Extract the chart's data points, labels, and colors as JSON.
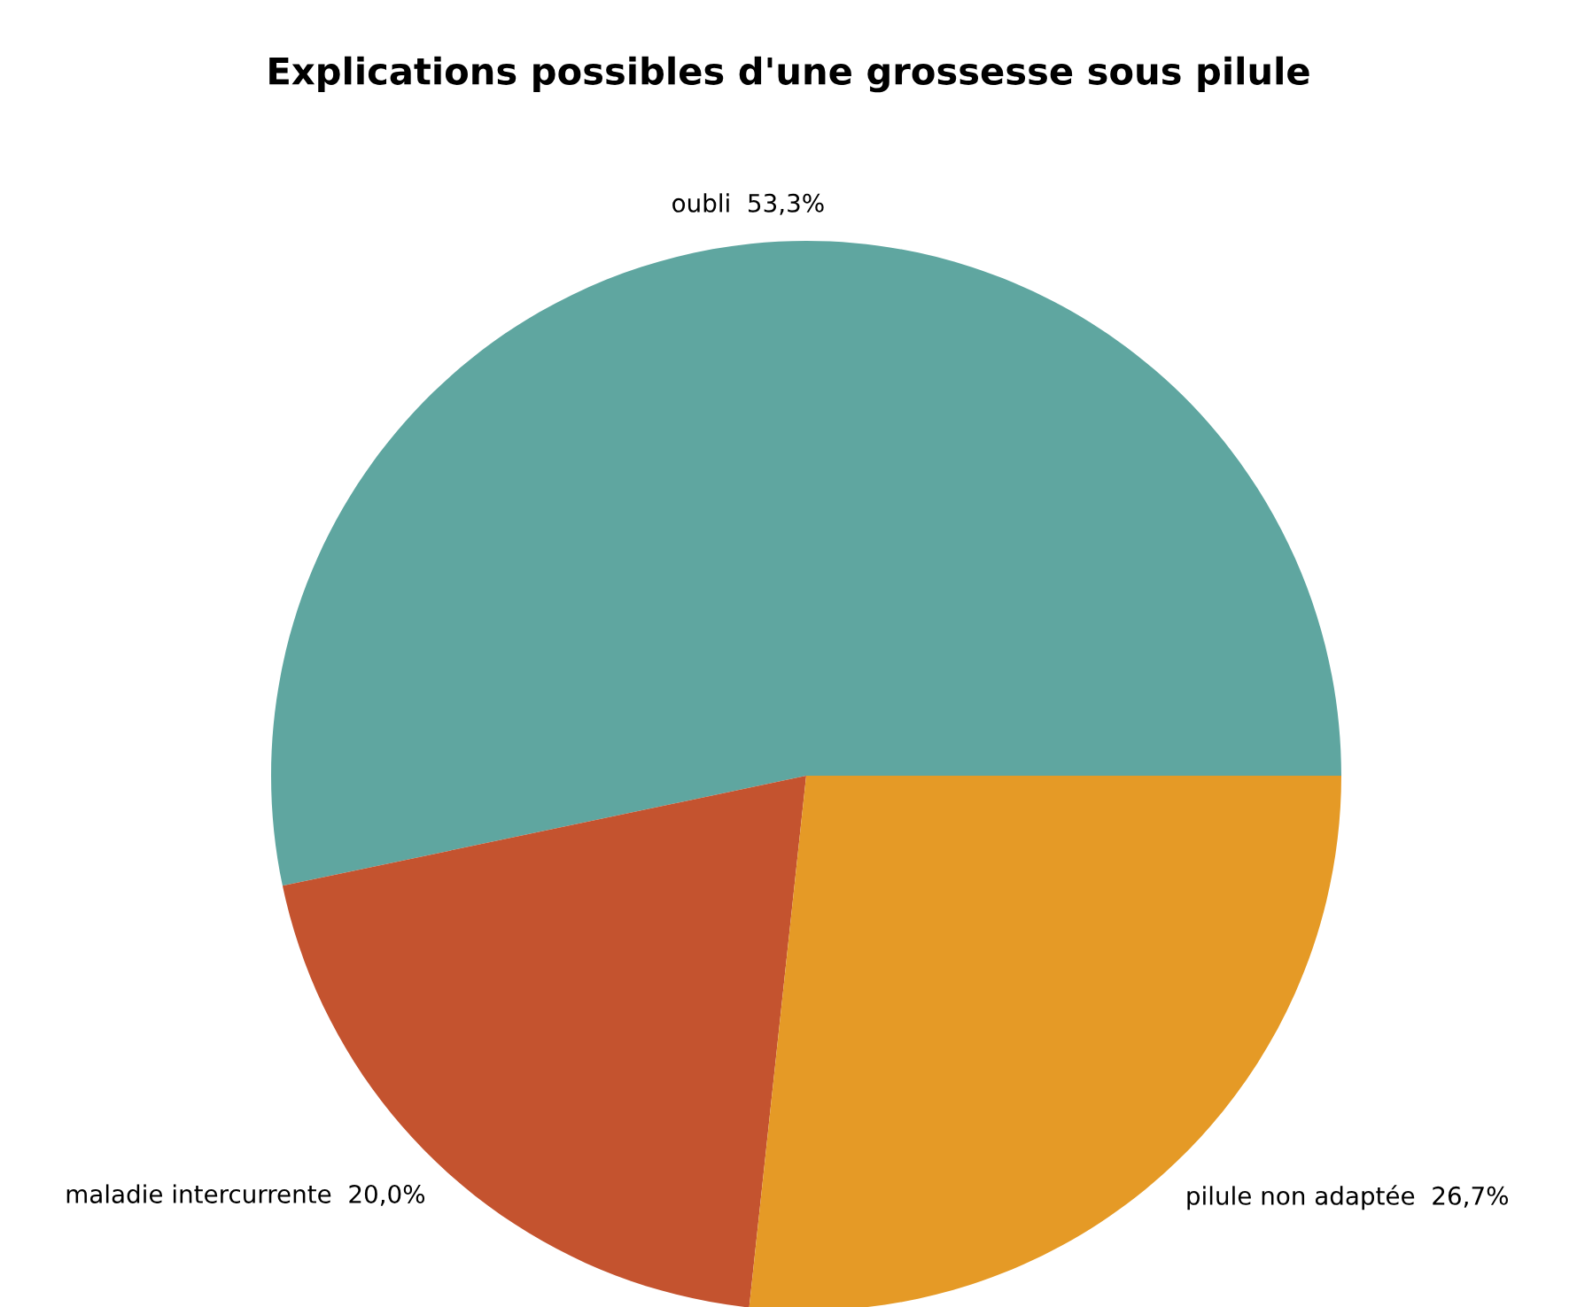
{
  "chart_data": {
    "type": "pie",
    "title": "Explications possibles d'une grossesse sous pilule",
    "categories": [
      "oubli",
      "maladie intercurrente",
      "pilule non adaptée"
    ],
    "values": [
      53.3,
      20.0,
      26.7
    ],
    "value_labels": [
      "53,3%",
      "20,0%",
      "26,7%"
    ],
    "colors": [
      "#5fa6a0",
      "#c4532f",
      "#e59a26"
    ],
    "legend": false
  }
}
